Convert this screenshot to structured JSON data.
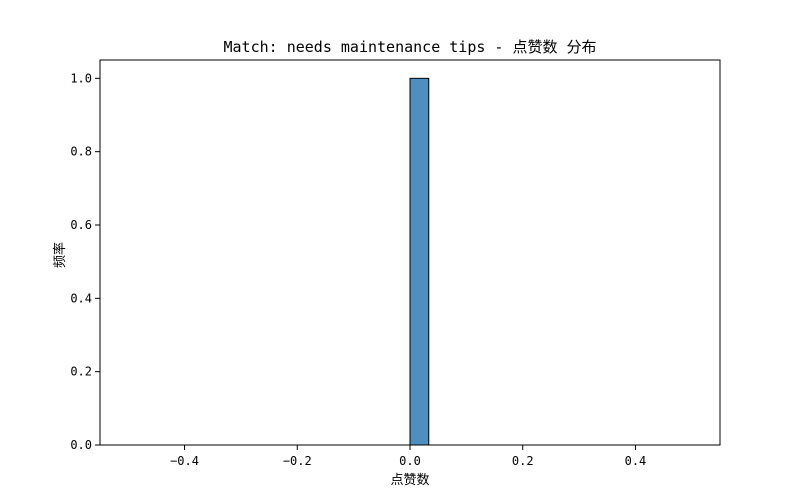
{
  "chart_data": {
    "type": "bar",
    "title": "Match: needs maintenance tips - 点赞数 分布",
    "xlabel": "点赞数",
    "ylabel": "频率",
    "xlim": [
      -0.55,
      0.55
    ],
    "ylim": [
      0,
      1.05
    ],
    "xticks": [
      -0.4,
      -0.2,
      0.0,
      0.2,
      0.4
    ],
    "xtick_labels": [
      "−0.4",
      "−0.2",
      "0.0",
      "0.2",
      "0.4"
    ],
    "yticks": [
      0.0,
      0.2,
      0.4,
      0.6,
      0.8,
      1.0
    ],
    "ytick_labels": [
      "0.0",
      "0.2",
      "0.4",
      "0.6",
      "0.8",
      "1.0"
    ],
    "bins": [
      {
        "x0": 0.0,
        "x1": 0.0333,
        "value": 1.0
      }
    ],
    "baseline_range": [
      -0.5,
      0.5
    ],
    "bar_color": "#4f8fc0",
    "bar_edge_color": "#000000",
    "grid": false,
    "legend": "none"
  }
}
